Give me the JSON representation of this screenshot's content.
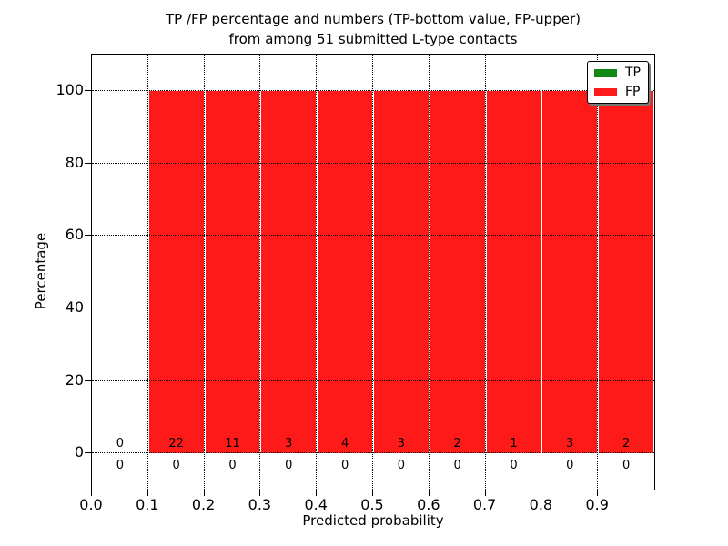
{
  "chart_data": {
    "type": "bar",
    "title": "TP /FP percentage and numbers (TP-bottom value, FP-upper) from among 51 submitted L-type contacts",
    "title_lines": [
      "TP /FP percentage and numbers (TP-bottom value, FP-upper)",
      "from among 51 submitted L-type contacts"
    ],
    "xlabel": "Predicted probability",
    "ylabel": "Percentage",
    "xlim": [
      0.0,
      1.0
    ],
    "ylim": [
      -10,
      110
    ],
    "x_tick_labels": [
      "0.0",
      "0.1",
      "0.2",
      "0.3",
      "0.4",
      "0.5",
      "0.6",
      "0.7",
      "0.8",
      "0.9"
    ],
    "y_tick_values": [
      0,
      20,
      40,
      60,
      80,
      100
    ],
    "bin_width": 0.1,
    "bin_starts": [
      0.0,
      0.1,
      0.2,
      0.3,
      0.4,
      0.5,
      0.6,
      0.7,
      0.8,
      0.9
    ],
    "grid": "dotted, drawn above bars",
    "series": [
      {
        "name": "TP",
        "color": "#128712",
        "percent": [
          0,
          0,
          0,
          0,
          0,
          0,
          0,
          0,
          0,
          0
        ],
        "counts": [
          0,
          0,
          0,
          0,
          0,
          0,
          0,
          0,
          0,
          0
        ],
        "count_row": "below-zero-line"
      },
      {
        "name": "FP",
        "color": "#ff1a1a",
        "percent": [
          0,
          100,
          100,
          100,
          100,
          100,
          100,
          100,
          100,
          100
        ],
        "counts": [
          0,
          22,
          11,
          3,
          4,
          3,
          2,
          1,
          3,
          2
        ],
        "count_row": "above-zero-line"
      }
    ],
    "legend": {
      "position": "upper right",
      "entries": [
        {
          "label": "TP",
          "color": "#128712"
        },
        {
          "label": "FP",
          "color": "#ff1a1a"
        }
      ]
    }
  },
  "colors": {
    "fp": "#ff1a1a",
    "tp": "#128712",
    "grid": "#000000",
    "text": "#000000",
    "background": "#ffffff"
  }
}
